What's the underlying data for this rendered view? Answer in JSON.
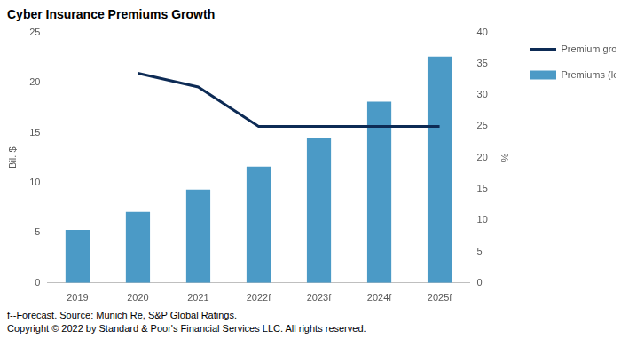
{
  "chart_data": {
    "type": "bar",
    "title": "Cyber Insurance Premiums Growth",
    "categories": [
      "2019",
      "2020",
      "2021",
      "2022f",
      "2023f",
      "2024f",
      "2025f"
    ],
    "series": [
      {
        "name": "Premiums (left scale)",
        "type": "bar",
        "color": "#4b9ac6",
        "values": [
          5.3,
          7.1,
          9.3,
          11.6,
          14.5,
          18.1,
          22.6
        ]
      },
      {
        "name": "Premium growth (right scale)",
        "type": "line",
        "color": "#0d2b55",
        "axis": "y2",
        "values": [
          null,
          33.5,
          31.3,
          25,
          25,
          25,
          25
        ]
      }
    ],
    "y_label": "Bil. $",
    "y2_label": "%",
    "ylim": [
      0,
      25
    ],
    "yticks": [
      0,
      5,
      10,
      15,
      20,
      25
    ],
    "y2lim": [
      0,
      40
    ],
    "y2ticks": [
      0,
      5,
      10,
      15,
      20,
      25,
      30,
      35,
      40
    ],
    "grid": false,
    "legend": "right",
    "annotations": [
      "f--Forecast. Source: Munich Re, S&P Global Ratings.",
      "Copyright © 2022 by Standard & Poor's Financial Services LLC. All rights reserved."
    ]
  }
}
